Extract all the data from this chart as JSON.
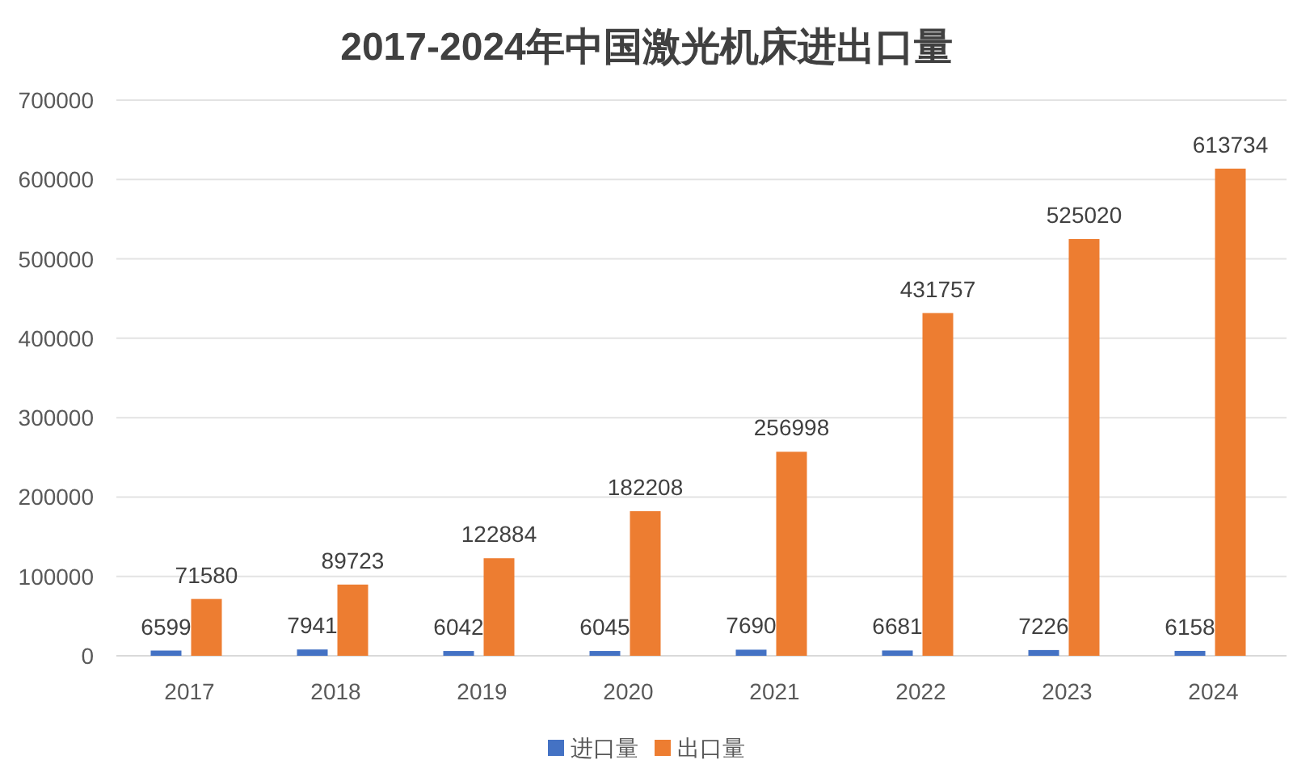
{
  "chart_data": {
    "type": "bar",
    "title": "2017-2024年中国激光机床进出口量",
    "categories": [
      "2017",
      "2018",
      "2019",
      "2020",
      "2021",
      "2022",
      "2023",
      "2024"
    ],
    "series": [
      {
        "name": "进口量",
        "color": "#4472c4",
        "values": [
          6599,
          7941,
          6042,
          6045,
          7690,
          6681,
          7226,
          6158
        ]
      },
      {
        "name": "出口量",
        "color": "#ed7d31",
        "values": [
          71580,
          89723,
          122884,
          182208,
          256998,
          431757,
          525020,
          613734
        ]
      }
    ],
    "ylim": [
      0,
      700000
    ],
    "yticks": [
      0,
      100000,
      200000,
      300000,
      400000,
      500000,
      600000,
      700000
    ],
    "grid": "y",
    "legend": "bottom",
    "data_labels": true
  }
}
